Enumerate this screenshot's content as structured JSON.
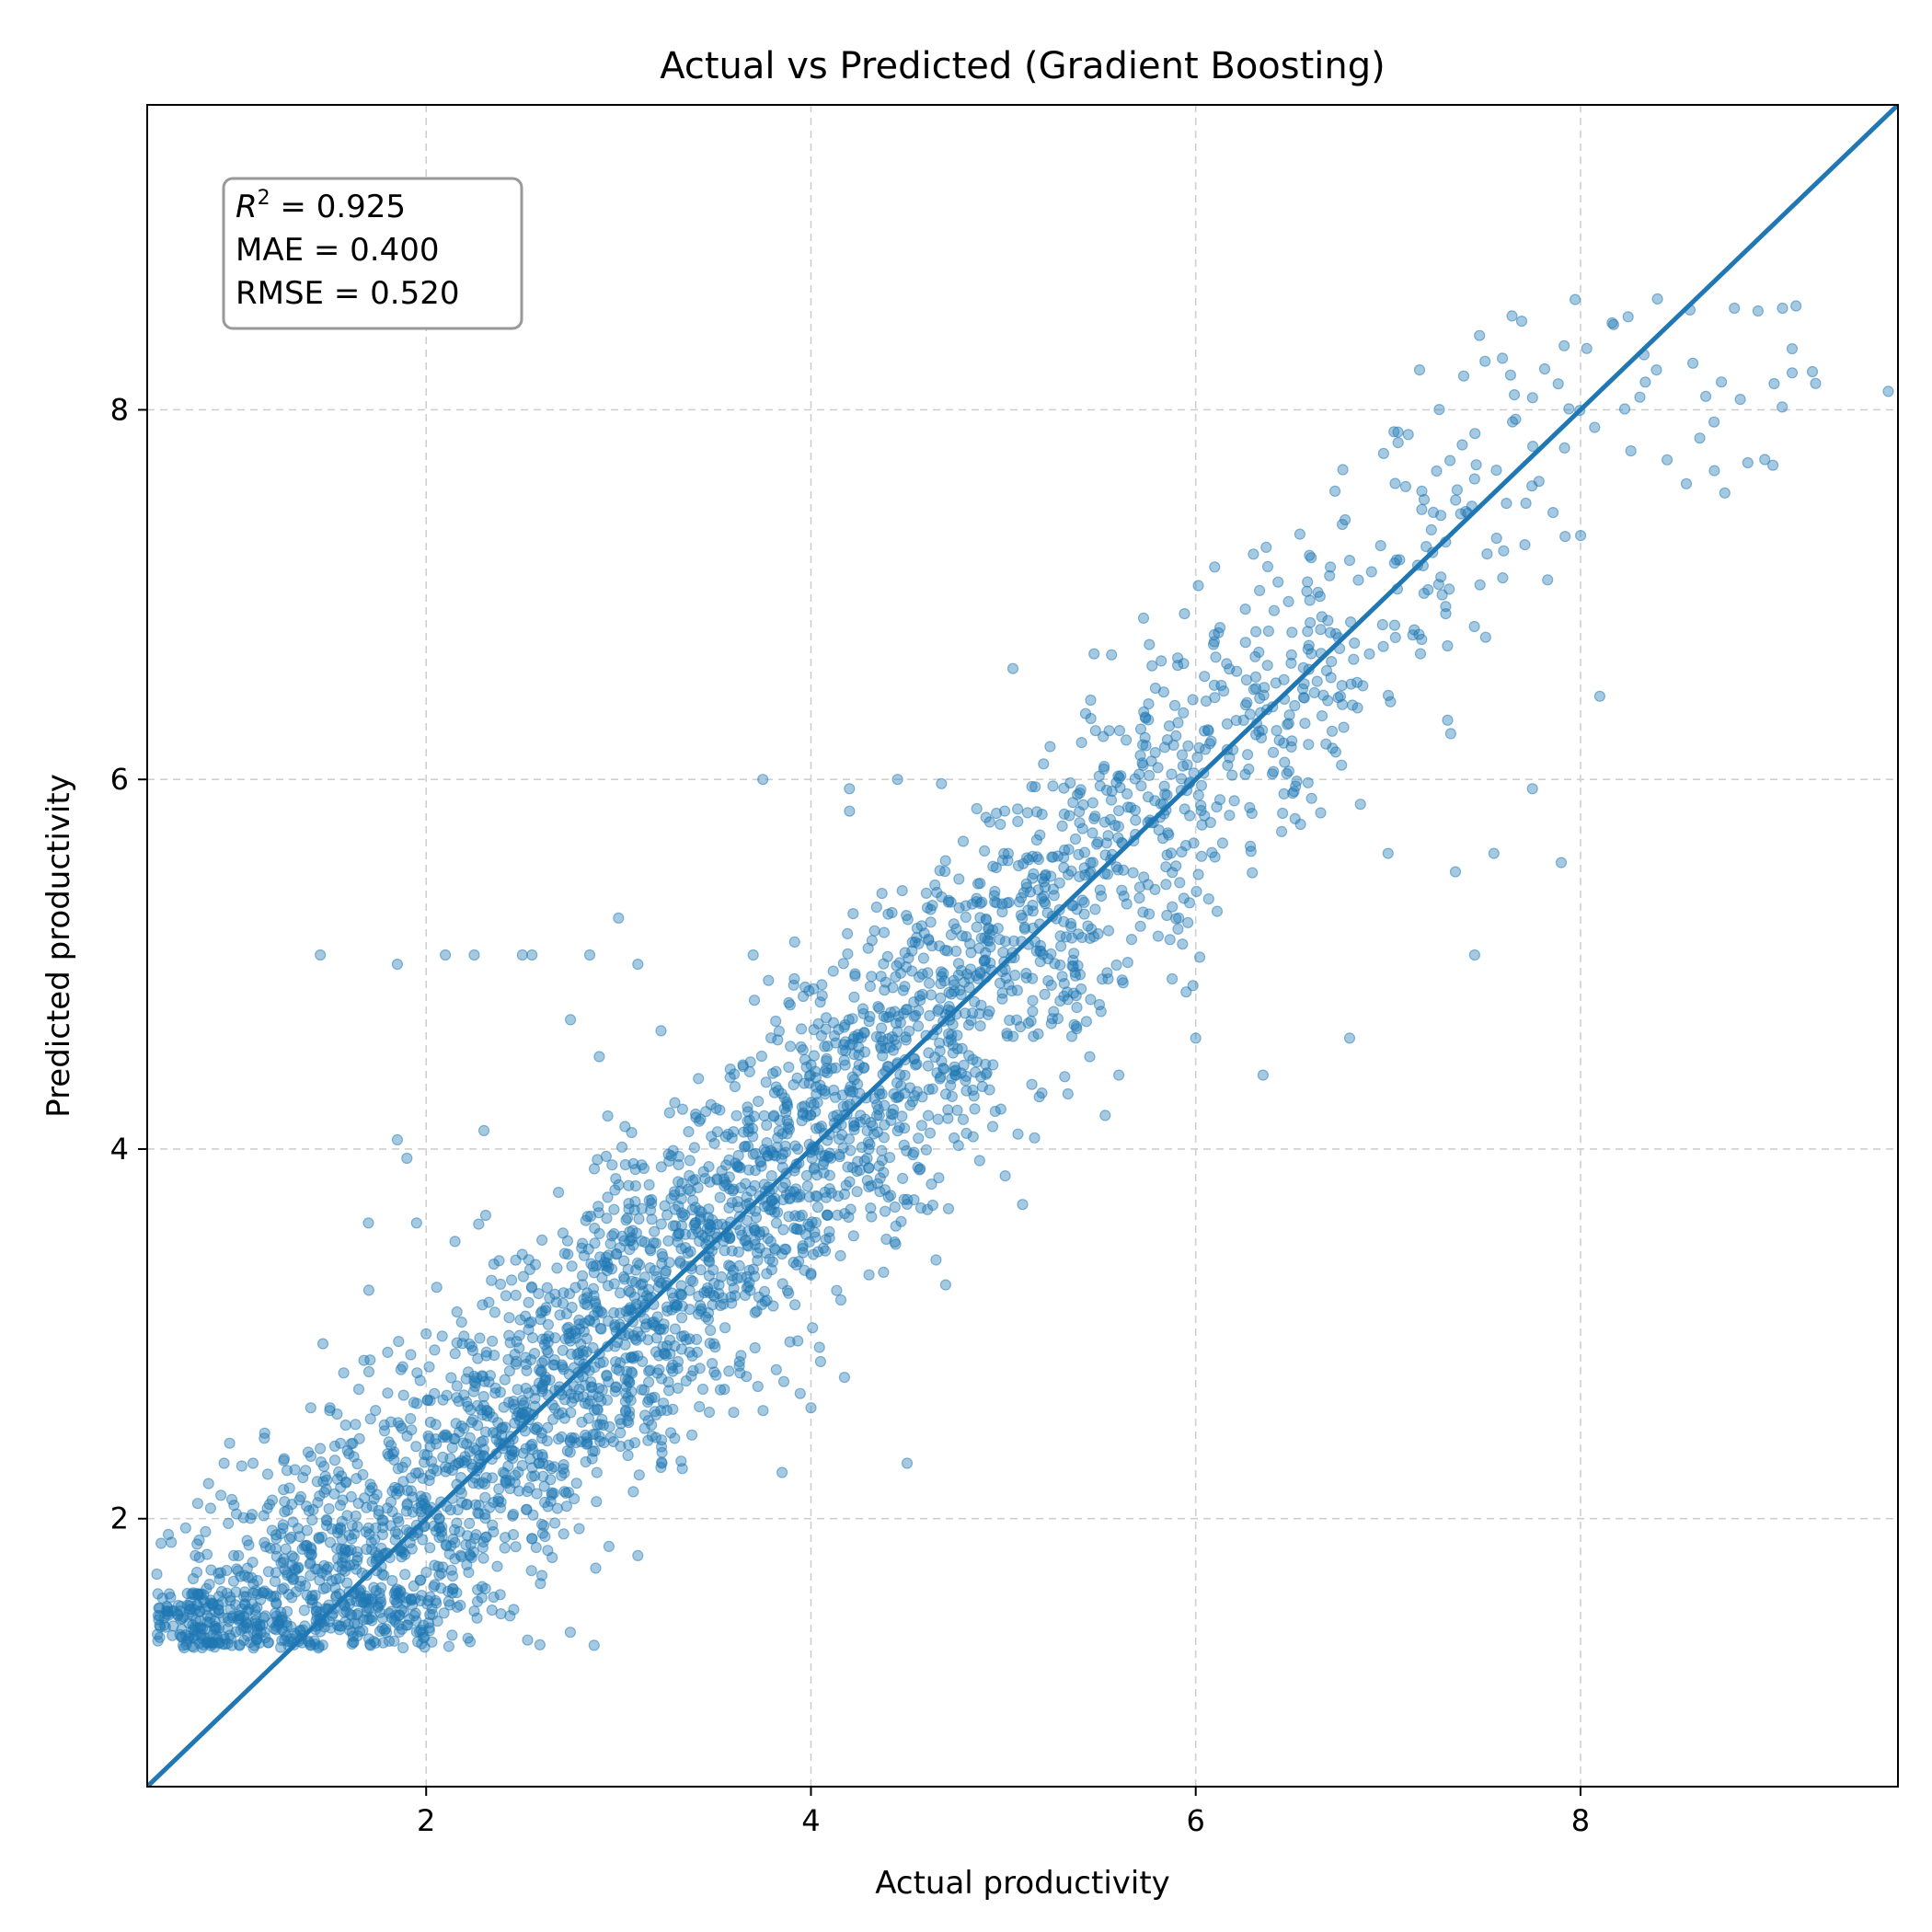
{
  "chart_data": {
    "type": "scatter",
    "title": "Actual vs Predicted (Gradient Boosting)",
    "xlabel": "Actual productivity",
    "ylabel": "Predicted productivity",
    "xlim": [
      0.55,
      9.65
    ],
    "ylim": [
      0.55,
      9.65
    ],
    "x_ticks": [
      2,
      4,
      6,
      8
    ],
    "y_ticks": [
      2,
      4,
      6,
      8
    ],
    "grid": true,
    "reference_line": {
      "from": [
        0.55,
        0.55
      ],
      "to": [
        9.65,
        9.65
      ],
      "color": "#1f77b4"
    },
    "point_color": "#1f77b4",
    "point_alpha": 0.4,
    "stats_box": {
      "placement": "top-left",
      "r2_label": "R",
      "r2_exponent": "2",
      "r2_value": " = 0.925",
      "mae": "MAE = 0.400",
      "rmse": "RMSE = 0.520"
    },
    "series": [
      {
        "points_approx": [
          [
            0.6,
            1.7
          ],
          [
            0.65,
            1.5
          ],
          [
            0.75,
            1.95
          ],
          [
            0.8,
            1.8
          ],
          [
            0.9,
            1.4
          ],
          [
            0.95,
            2.3
          ],
          [
            1.0,
            1.8
          ],
          [
            1.1,
            2.3
          ],
          [
            1.15,
            1.6
          ],
          [
            1.2,
            2.1
          ],
          [
            1.25,
            1.4
          ],
          [
            1.3,
            1.9
          ],
          [
            1.35,
            1.35
          ],
          [
            1.4,
            2.6
          ],
          [
            1.45,
            5.05
          ],
          [
            1.5,
            2.6
          ],
          [
            1.55,
            1.4
          ],
          [
            1.65,
            2.7
          ],
          [
            1.7,
            3.6
          ],
          [
            1.75,
            1.8
          ],
          [
            1.8,
            2.9
          ],
          [
            1.85,
            4.05
          ],
          [
            1.85,
            5.0
          ],
          [
            1.9,
            3.95
          ],
          [
            1.95,
            3.6
          ],
          [
            2.0,
            3.0
          ],
          [
            2.1,
            5.05
          ],
          [
            2.15,
            3.5
          ],
          [
            2.25,
            5.05
          ],
          [
            2.3,
            4.1
          ],
          [
            2.25,
            1.5
          ],
          [
            2.5,
            5.05
          ],
          [
            2.55,
            5.05
          ],
          [
            2.6,
            2.8
          ],
          [
            2.75,
            4.7
          ],
          [
            2.85,
            5.05
          ],
          [
            2.9,
            4.5
          ],
          [
            2.95,
            1.85
          ],
          [
            3.0,
            5.25
          ],
          [
            3.1,
            1.8
          ],
          [
            3.1,
            5.0
          ],
          [
            3.55,
            2.7
          ],
          [
            3.7,
            5.05
          ],
          [
            3.75,
            6.0
          ],
          [
            3.85,
            2.25
          ],
          [
            4.0,
            2.6
          ],
          [
            4.05,
            2.85
          ],
          [
            4.2,
            5.95
          ],
          [
            4.45,
            6.0
          ],
          [
            4.5,
            2.3
          ],
          [
            4.65,
            3.4
          ],
          [
            5.1,
            3.7
          ],
          [
            5.05,
            6.6
          ],
          [
            5.6,
            4.4
          ],
          [
            5.95,
            4.85
          ],
          [
            6.0,
            4.6
          ],
          [
            6.35,
            4.4
          ],
          [
            6.6,
            7.2
          ],
          [
            6.8,
            4.6
          ],
          [
            7.0,
            5.6
          ],
          [
            7.35,
            5.5
          ],
          [
            7.45,
            5.05
          ],
          [
            7.55,
            5.6
          ],
          [
            7.75,
            5.95
          ],
          [
            7.9,
            5.55
          ],
          [
            8.1,
            6.45
          ],
          [
            8.4,
            8.6
          ],
          [
            8.8,
            8.55
          ],
          [
            9.05,
            8.55
          ],
          [
            9.1,
            8.2
          ],
          [
            9.6,
            8.1
          ],
          [
            8.55,
            7.6
          ],
          [
            8.75,
            7.55
          ],
          [
            9.0,
            7.7
          ]
        ]
      }
    ]
  }
}
